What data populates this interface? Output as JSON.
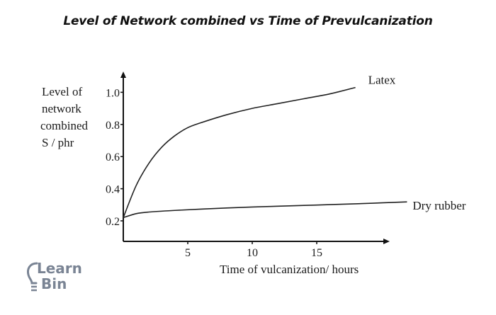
{
  "title": "Level of Network combined vs Time of Prevulcanization",
  "logo": {
    "line1": "Learn",
    "line2": "Bin",
    "icon": "lightbulb-icon"
  },
  "chart_data": {
    "type": "line",
    "xlabel": "Time of vulcanization/ hours",
    "ylabel_lines": [
      "Level of",
      "network",
      "combined",
      "S / phr"
    ],
    "xlim": [
      0,
      22
    ],
    "ylim": [
      0.1,
      1.1
    ],
    "x_ticks": [
      5,
      10,
      15
    ],
    "y_ticks": [
      0.2,
      0.4,
      0.6,
      0.8,
      1.0
    ],
    "y_tick_labels": [
      "0.2",
      "0.4",
      "0.6",
      "0.8",
      "1.0"
    ],
    "grid": false,
    "series": [
      {
        "name": "Latex",
        "x": [
          0,
          1,
          2,
          3,
          4,
          5,
          6,
          8,
          10,
          12,
          14,
          16,
          18
        ],
        "y": [
          0.22,
          0.42,
          0.56,
          0.66,
          0.73,
          0.78,
          0.81,
          0.86,
          0.9,
          0.93,
          0.96,
          0.99,
          1.03
        ]
      },
      {
        "name": "Dry rubber",
        "x": [
          0,
          1,
          2,
          4,
          6,
          8,
          10,
          12,
          14,
          16,
          18,
          20,
          22
        ],
        "y": [
          0.22,
          0.245,
          0.255,
          0.265,
          0.273,
          0.28,
          0.286,
          0.291,
          0.296,
          0.301,
          0.306,
          0.312,
          0.318
        ]
      }
    ]
  }
}
